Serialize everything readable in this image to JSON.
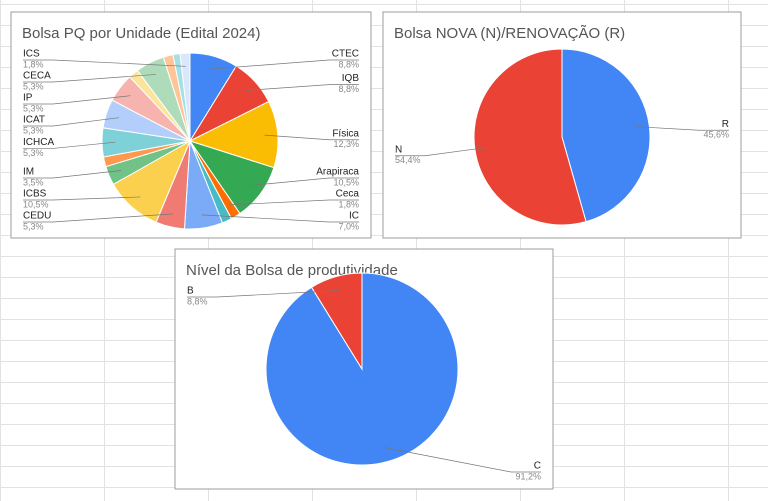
{
  "chart_data": [
    {
      "type": "pie",
      "title": "Bolsa PQ por Unidade (Edital 2024)",
      "categories": [
        "CTEC",
        "IQB",
        "Física",
        "Arapiraca",
        "Ceca",
        null,
        "IC",
        "CEDU",
        "ICBS",
        "IM",
        null,
        "ICHCA",
        "ICAT",
        "IP",
        null,
        "CECA",
        null,
        null,
        "ICS"
      ],
      "values": [
        8.8,
        8.8,
        12.3,
        10.5,
        1.8,
        1.8,
        7.0,
        5.3,
        10.5,
        3.5,
        1.8,
        5.3,
        5.3,
        5.3,
        1.8,
        5.3,
        1.8,
        1.3,
        1.8
      ],
      "value_labels": [
        "8,8%",
        "8,8%",
        "12,3%",
        "10,5%",
        "1,8%",
        null,
        "7,0%",
        "5,3%",
        "10,5%",
        "3,5%",
        null,
        "5,3%",
        "5,3%",
        "5,3%",
        null,
        "5,3%",
        null,
        null,
        "1,8%"
      ],
      "colors": [
        "#4285f4",
        "#ea4335",
        "#fbbc04",
        "#34a853",
        "#ff6d01",
        "#46bdc6",
        "#7baaf7",
        "#f07b72",
        "#fcd04f",
        "#71c287",
        "#ff994d",
        "#7ed1d7",
        "#b3cefb",
        "#f7b4ae",
        "#fde49b",
        "#aedcba",
        "#ffc599",
        "#a3dfe3",
        "#d9e6fc"
      ]
    },
    {
      "type": "pie",
      "title": "Bolsa NOVA (N)/RENOVAÇÃO (R)",
      "categories": [
        "R",
        "N"
      ],
      "values": [
        45.6,
        54.4
      ],
      "value_labels": [
        "45,6%",
        "54,4%"
      ],
      "colors": [
        "#4285f4",
        "#ea4335"
      ]
    },
    {
      "type": "pie",
      "title": "Nível da Bolsa de produtividade",
      "categories": [
        "C",
        "B"
      ],
      "values": [
        91.2,
        8.8
      ],
      "value_labels": [
        "91,2%",
        "8,8%"
      ],
      "colors": [
        "#4285f4",
        "#ea4335"
      ]
    }
  ]
}
